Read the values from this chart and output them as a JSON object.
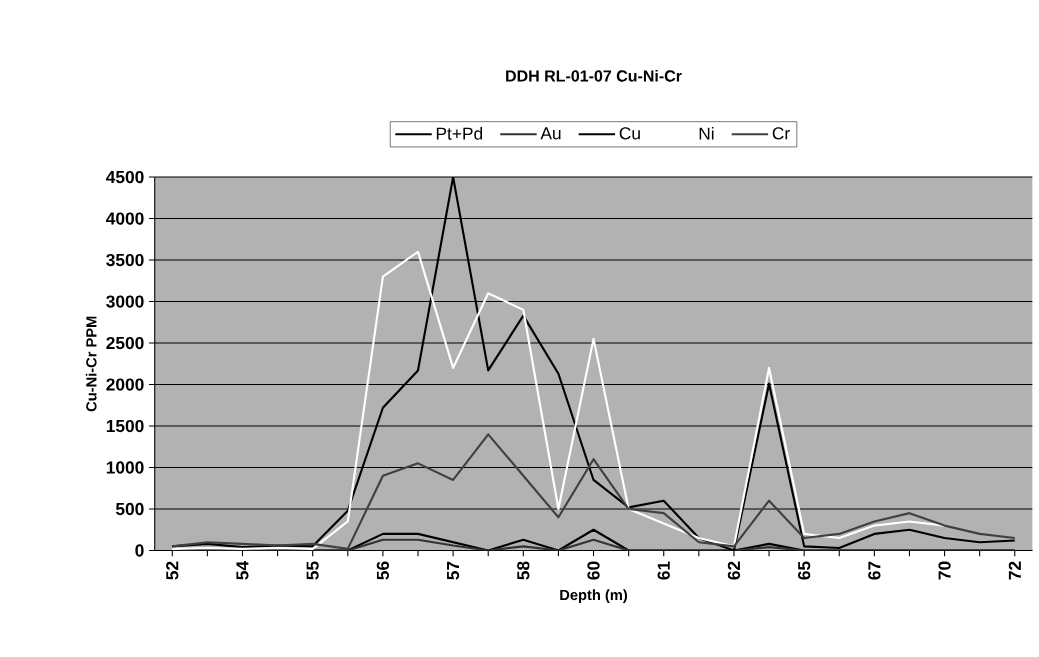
{
  "chart_data": {
    "type": "line",
    "title": "DDH RL-01-07 Cu-Ni-Cr",
    "xlabel": "Depth (m)",
    "ylabel": "Cu-Ni-Cr PPM",
    "categories": [
      "52",
      null,
      "54",
      null,
      "55",
      null,
      "56",
      null,
      "57",
      null,
      "58",
      null,
      "60",
      null,
      "61",
      null,
      "62",
      null,
      "65",
      null,
      "67",
      null,
      "70",
      null,
      "72"
    ],
    "series": [
      {
        "name": "Pt+Pd",
        "color": "#000000",
        "values": [
          0,
          0,
          0,
          0,
          0,
          0,
          200,
          200,
          100,
          0,
          130,
          0,
          250,
          0,
          0,
          0,
          0,
          80,
          0,
          0,
          0,
          0,
          0,
          0,
          0
        ]
      },
      {
        "name": "Au",
        "color": "#333333",
        "values": [
          0,
          0,
          0,
          0,
          0,
          0,
          130,
          130,
          60,
          0,
          50,
          0,
          130,
          0,
          0,
          0,
          0,
          40,
          0,
          0,
          0,
          0,
          0,
          0,
          0
        ]
      },
      {
        "name": "Cu",
        "color": "#000000",
        "values": [
          50,
          80,
          40,
          60,
          50,
          480,
          1720,
          2170,
          4500,
          2170,
          2830,
          2130,
          850,
          520,
          600,
          150,
          0,
          2010,
          50,
          30,
          200,
          250,
          150,
          100,
          120
        ]
      },
      {
        "name": "Ni",
        "color": "#ffffff",
        "values": [
          20,
          30,
          20,
          30,
          20,
          350,
          3300,
          3600,
          2200,
          3100,
          2900,
          500,
          2550,
          500,
          null,
          150,
          50,
          2200,
          200,
          150,
          300,
          350,
          300,
          null,
          null
        ]
      },
      {
        "name": "Cr",
        "color": "#404040",
        "values": [
          50,
          100,
          80,
          60,
          80,
          20,
          900,
          1050,
          850,
          1400,
          900,
          400,
          1100,
          500,
          450,
          100,
          50,
          600,
          150,
          200,
          350,
          450,
          300,
          200,
          150
        ]
      }
    ],
    "ylim": [
      0,
      4500
    ],
    "yticks": [
      0,
      500,
      1000,
      1500,
      2000,
      2500,
      3000,
      3500,
      4000,
      4500
    ],
    "grid": "y",
    "legend": "top",
    "marker": "none",
    "line_style": "solid"
  }
}
